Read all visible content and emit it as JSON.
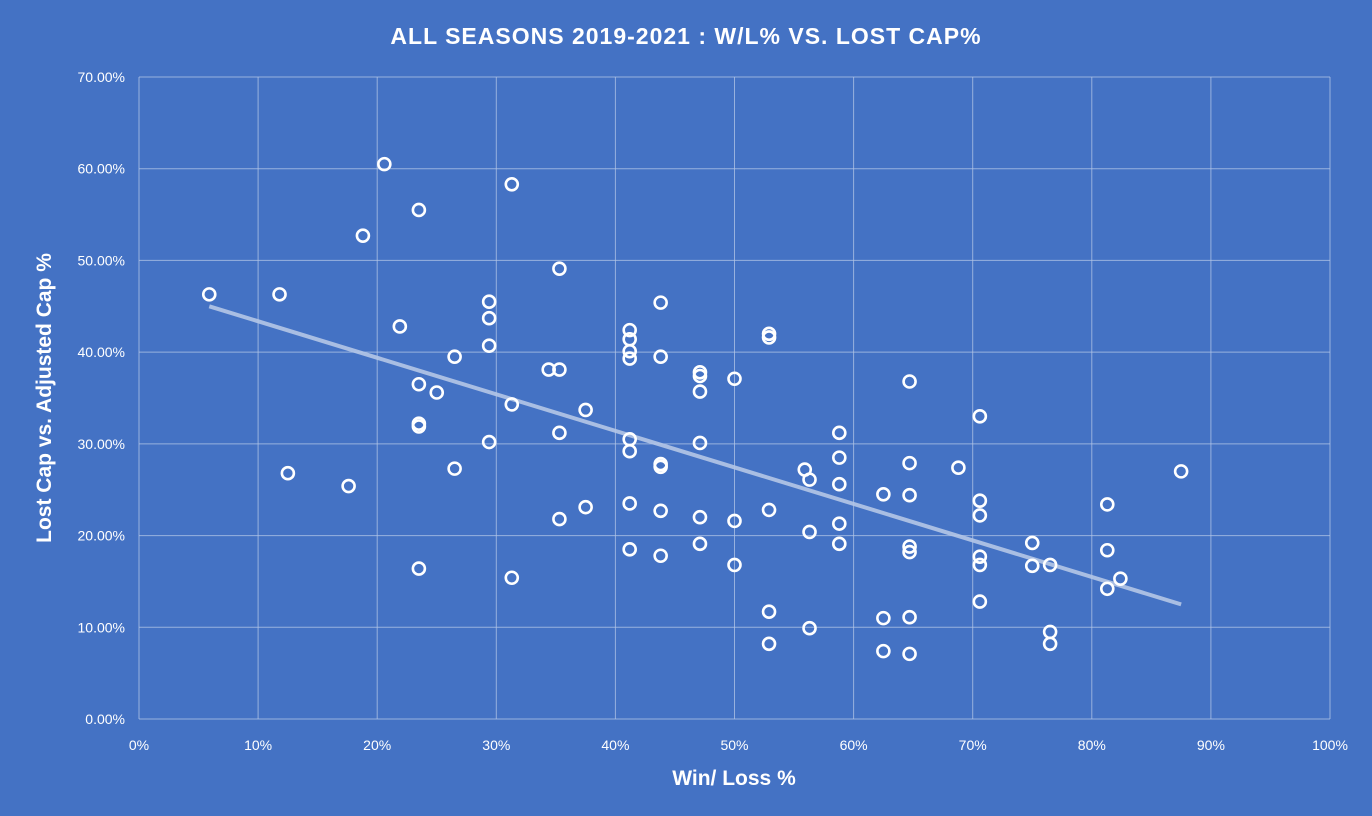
{
  "colors": {
    "background": "#4472c4",
    "grid": "#b4c7e7",
    "marker": "#ffffff",
    "trendline": "#b4c7e7"
  },
  "chart_data": {
    "type": "scatter",
    "title": "ALL SEASONS 2019-2021 : W/L% VS. LOST CAP%",
    "xlabel": "Win/ Loss %",
    "ylabel": "Lost Cap vs. Adjusted Cap %",
    "xlim": [
      0,
      1
    ],
    "ylim": [
      0,
      0.7
    ],
    "x_ticks": [
      0,
      0.1,
      0.2,
      0.3,
      0.4,
      0.5,
      0.6,
      0.7,
      0.8,
      0.9,
      1.0
    ],
    "x_tick_labels": [
      "0%",
      "10%",
      "20%",
      "30%",
      "40%",
      "50%",
      "60%",
      "70%",
      "80%",
      "90%",
      "100%"
    ],
    "y_ticks": [
      0,
      0.1,
      0.2,
      0.3,
      0.4,
      0.5,
      0.6,
      0.7
    ],
    "y_tick_labels": [
      "0.00%",
      "10.00%",
      "20.00%",
      "30.00%",
      "40.00%",
      "50.00%",
      "60.00%",
      "70.00%"
    ],
    "grid": true,
    "legend": "none",
    "trendline": {
      "type": "linear",
      "x": [
        0.059,
        0.875
      ],
      "y": [
        0.45,
        0.125
      ]
    },
    "series": [
      {
        "points": [
          [
            0.059,
            0.463
          ],
          [
            0.118,
            0.463
          ],
          [
            0.125,
            0.268
          ],
          [
            0.176,
            0.254
          ],
          [
            0.188,
            0.527
          ],
          [
            0.206,
            0.605
          ],
          [
            0.219,
            0.428
          ],
          [
            0.235,
            0.555
          ],
          [
            0.235,
            0.365
          ],
          [
            0.235,
            0.322
          ],
          [
            0.235,
            0.319
          ],
          [
            0.235,
            0.164
          ],
          [
            0.25,
            0.356
          ],
          [
            0.265,
            0.395
          ],
          [
            0.265,
            0.273
          ],
          [
            0.294,
            0.455
          ],
          [
            0.294,
            0.437
          ],
          [
            0.294,
            0.407
          ],
          [
            0.294,
            0.302
          ],
          [
            0.313,
            0.583
          ],
          [
            0.313,
            0.343
          ],
          [
            0.313,
            0.154
          ],
          [
            0.344,
            0.381
          ],
          [
            0.353,
            0.491
          ],
          [
            0.353,
            0.381
          ],
          [
            0.353,
            0.312
          ],
          [
            0.353,
            0.218
          ],
          [
            0.375,
            0.337
          ],
          [
            0.375,
            0.231
          ],
          [
            0.412,
            0.424
          ],
          [
            0.412,
            0.414
          ],
          [
            0.412,
            0.401
          ],
          [
            0.412,
            0.393
          ],
          [
            0.412,
            0.305
          ],
          [
            0.412,
            0.292
          ],
          [
            0.412,
            0.235
          ],
          [
            0.412,
            0.185
          ],
          [
            0.438,
            0.454
          ],
          [
            0.438,
            0.395
          ],
          [
            0.438,
            0.278
          ],
          [
            0.438,
            0.275
          ],
          [
            0.438,
            0.227
          ],
          [
            0.438,
            0.178
          ],
          [
            0.471,
            0.378
          ],
          [
            0.471,
            0.374
          ],
          [
            0.471,
            0.357
          ],
          [
            0.471,
            0.301
          ],
          [
            0.471,
            0.22
          ],
          [
            0.471,
            0.191
          ],
          [
            0.5,
            0.371
          ],
          [
            0.5,
            0.216
          ],
          [
            0.5,
            0.168
          ],
          [
            0.529,
            0.42
          ],
          [
            0.529,
            0.416
          ],
          [
            0.529,
            0.228
          ],
          [
            0.529,
            0.117
          ],
          [
            0.529,
            0.082
          ],
          [
            0.559,
            0.272
          ],
          [
            0.563,
            0.261
          ],
          [
            0.563,
            0.204
          ],
          [
            0.563,
            0.099
          ],
          [
            0.588,
            0.312
          ],
          [
            0.588,
            0.285
          ],
          [
            0.588,
            0.256
          ],
          [
            0.588,
            0.213
          ],
          [
            0.588,
            0.191
          ],
          [
            0.625,
            0.245
          ],
          [
            0.625,
            0.11
          ],
          [
            0.625,
            0.074
          ],
          [
            0.647,
            0.368
          ],
          [
            0.647,
            0.279
          ],
          [
            0.647,
            0.244
          ],
          [
            0.647,
            0.188
          ],
          [
            0.647,
            0.182
          ],
          [
            0.647,
            0.111
          ],
          [
            0.647,
            0.071
          ],
          [
            0.688,
            0.274
          ],
          [
            0.706,
            0.33
          ],
          [
            0.706,
            0.238
          ],
          [
            0.706,
            0.222
          ],
          [
            0.706,
            0.177
          ],
          [
            0.706,
            0.168
          ],
          [
            0.706,
            0.128
          ],
          [
            0.75,
            0.192
          ],
          [
            0.75,
            0.167
          ],
          [
            0.765,
            0.168
          ],
          [
            0.765,
            0.095
          ],
          [
            0.765,
            0.082
          ],
          [
            0.813,
            0.234
          ],
          [
            0.813,
            0.184
          ],
          [
            0.813,
            0.142
          ],
          [
            0.824,
            0.153
          ],
          [
            0.875,
            0.27
          ]
        ]
      }
    ]
  }
}
